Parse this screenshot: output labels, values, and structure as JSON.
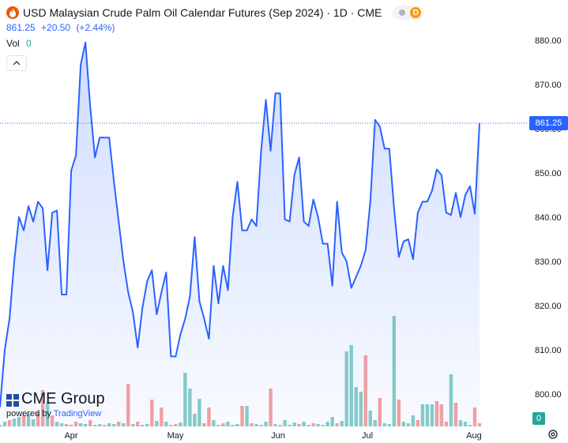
{
  "header": {
    "title": "USD Malaysian Crude Palm Oil Calendar Futures (Sep 2024) · 1D · CME",
    "badge": "D",
    "last_price": "861.25",
    "change": "+20.50",
    "change_pct": "(+2.44%)",
    "volume_label": "Vol",
    "volume_value": "0"
  },
  "logo": {
    "brand": "CME Group",
    "powered_prefix": "powered by",
    "powered_brand": "TradingView"
  },
  "price_tag": "861.25",
  "volume_tag": "0",
  "colors": {
    "line": "#2962ff",
    "area_top": "#c9d6fb",
    "up_volume": "#26a69a",
    "down_volume": "#ef5350",
    "price_tag": "#2962ff"
  },
  "chart_data": {
    "type": "area",
    "title": "USD Malaysian Crude Palm Oil Calendar Futures (Sep 2024) · 1D · CME",
    "xlabel": "",
    "ylabel": "",
    "x_ticks": [
      "Apr",
      "May",
      "Jun",
      "Jul",
      "Aug"
    ],
    "y_ticks": [
      "800.00",
      "810.00",
      "820.00",
      "830.00",
      "840.00",
      "850.00",
      "860.00",
      "870.00",
      "880.00"
    ],
    "ylim": [
      796.5,
      883.5
    ],
    "grid": false,
    "series": [
      {
        "values": [
          797,
          810,
          817,
          830,
          840,
          837,
          842.5,
          839,
          843.5,
          842,
          828,
          841,
          841.5,
          822.5,
          822.5,
          850.5,
          854,
          874.5,
          879.5,
          865,
          853.5,
          858,
          858,
          858,
          848,
          839,
          830,
          823,
          818.5,
          810.5,
          819.5,
          825.5,
          828,
          818,
          823,
          827.5,
          808.5,
          808.5,
          813.5,
          817,
          822,
          835.5,
          821,
          817,
          812.5,
          829,
          820.5,
          829,
          823.5,
          840,
          848,
          837,
          837,
          839.5,
          838,
          855,
          866.5,
          855,
          868,
          868,
          839.5,
          839,
          849.5,
          853.5,
          839,
          838,
          844,
          840,
          834,
          834,
          824.5,
          843.5,
          832,
          830,
          824,
          826.5,
          829,
          832.5,
          843.5,
          862,
          860.5,
          855.5,
          855.5,
          842,
          831,
          834.5,
          835,
          830.5,
          841,
          843.5,
          843.5,
          846,
          850.8,
          849.5,
          841,
          840.5,
          845.5,
          840,
          845,
          847,
          840.75,
          861.25
        ]
      },
      {
        "name": "Vol",
        "values": [
          0,
          0,
          0,
          0,
          0,
          0,
          0,
          0,
          0,
          0,
          0,
          0,
          0,
          0,
          0,
          0,
          0,
          0,
          0,
          0,
          0,
          0,
          0,
          0,
          0,
          0,
          0,
          0,
          0,
          0,
          0,
          0,
          0,
          0,
          0,
          0,
          0,
          0,
          0,
          0,
          0,
          0,
          0,
          0,
          0,
          0,
          0,
          0,
          0,
          0,
          0,
          0,
          0,
          0,
          0,
          0,
          0,
          0,
          0,
          0,
          0,
          0,
          0,
          0,
          0,
          0,
          0,
          0,
          0,
          0,
          0,
          0,
          0,
          0,
          0,
          0,
          0,
          0,
          0,
          0,
          0,
          0,
          0,
          0,
          0,
          0,
          0,
          0,
          0,
          0,
          0,
          0,
          0,
          0,
          0,
          0,
          0,
          0,
          0,
          0,
          0,
          0
        ]
      }
    ],
    "volume_bars": [
      {
        "h": 2,
        "up": true
      },
      {
        "h": 6,
        "up": true
      },
      {
        "h": 8,
        "up": false
      },
      {
        "h": 10,
        "up": true
      },
      {
        "h": 12,
        "up": true
      },
      {
        "h": 14,
        "up": false
      },
      {
        "h": 16,
        "up": true
      },
      {
        "h": 9,
        "up": true
      },
      {
        "h": 18,
        "up": false
      },
      {
        "h": 46,
        "up": false
      },
      {
        "h": 30,
        "up": true
      },
      {
        "h": 14,
        "up": false
      },
      {
        "h": 6,
        "up": true
      },
      {
        "h": 4,
        "up": true
      },
      {
        "h": 3,
        "up": false
      },
      {
        "h": 2,
        "up": true
      },
      {
        "h": 6,
        "up": false
      },
      {
        "h": 4,
        "up": true
      },
      {
        "h": 3,
        "up": true
      },
      {
        "h": 8,
        "up": false
      },
      {
        "h": 2,
        "up": true
      },
      {
        "h": 3,
        "up": true
      },
      {
        "h": 2,
        "up": false
      },
      {
        "h": 4,
        "up": true
      },
      {
        "h": 3,
        "up": true
      },
      {
        "h": 6,
        "up": false
      },
      {
        "h": 4,
        "up": true
      },
      {
        "h": 54,
        "up": false
      },
      {
        "h": 3,
        "up": true
      },
      {
        "h": 6,
        "up": false
      },
      {
        "h": 2,
        "up": true
      },
      {
        "h": 3,
        "up": true
      },
      {
        "h": 34,
        "up": false
      },
      {
        "h": 7,
        "up": true
      },
      {
        "h": 24,
        "up": false
      },
      {
        "h": 6,
        "up": true
      },
      {
        "h": 2,
        "up": true
      },
      {
        "h": 3,
        "up": false
      },
      {
        "h": 5,
        "up": true
      },
      {
        "h": 68,
        "up": true
      },
      {
        "h": 48,
        "up": true
      },
      {
        "h": 16,
        "up": true
      },
      {
        "h": 35,
        "up": true
      },
      {
        "h": 4,
        "up": false
      },
      {
        "h": 24,
        "up": false
      },
      {
        "h": 8,
        "up": true
      },
      {
        "h": 2,
        "up": true
      },
      {
        "h": 4,
        "up": false
      },
      {
        "h": 6,
        "up": true
      },
      {
        "h": 2,
        "up": true
      },
      {
        "h": 3,
        "up": true
      },
      {
        "h": 26,
        "up": false
      },
      {
        "h": 26,
        "up": true
      },
      {
        "h": 4,
        "up": false
      },
      {
        "h": 3,
        "up": true
      },
      {
        "h": 2,
        "up": true
      },
      {
        "h": 6,
        "up": true
      },
      {
        "h": 48,
        "up": false
      },
      {
        "h": 3,
        "up": true
      },
      {
        "h": 2,
        "up": false
      },
      {
        "h": 8,
        "up": true
      },
      {
        "h": 2,
        "up": true
      },
      {
        "h": 5,
        "up": true
      },
      {
        "h": 3,
        "up": false
      },
      {
        "h": 6,
        "up": true
      },
      {
        "h": 2,
        "up": true
      },
      {
        "h": 4,
        "up": false
      },
      {
        "h": 3,
        "up": true
      },
      {
        "h": 2,
        "up": true
      },
      {
        "h": 6,
        "up": true
      },
      {
        "h": 12,
        "up": true
      },
      {
        "h": 4,
        "up": false
      },
      {
        "h": 7,
        "up": true
      },
      {
        "h": 95,
        "up": true
      },
      {
        "h": 103,
        "up": true
      },
      {
        "h": 50,
        "up": true
      },
      {
        "h": 44,
        "up": true
      },
      {
        "h": 90,
        "up": false
      },
      {
        "h": 20,
        "up": true
      },
      {
        "h": 8,
        "up": true
      },
      {
        "h": 36,
        "up": false
      },
      {
        "h": 4,
        "up": true
      },
      {
        "h": 3,
        "up": true
      },
      {
        "h": 140,
        "up": true
      },
      {
        "h": 34,
        "up": false
      },
      {
        "h": 6,
        "up": true
      },
      {
        "h": 4,
        "up": true
      },
      {
        "h": 14,
        "up": true
      },
      {
        "h": 8,
        "up": false
      },
      {
        "h": 28,
        "up": true
      },
      {
        "h": 28,
        "up": true
      },
      {
        "h": 28,
        "up": true
      },
      {
        "h": 32,
        "up": false
      },
      {
        "h": 28,
        "up": false
      },
      {
        "h": 6,
        "up": false
      },
      {
        "h": 66,
        "up": true
      },
      {
        "h": 30,
        "up": false
      },
      {
        "h": 8,
        "up": true
      },
      {
        "h": 6,
        "up": true
      },
      {
        "h": 2,
        "up": true
      },
      {
        "h": 24,
        "up": false
      },
      {
        "h": 4,
        "up": false
      }
    ]
  }
}
